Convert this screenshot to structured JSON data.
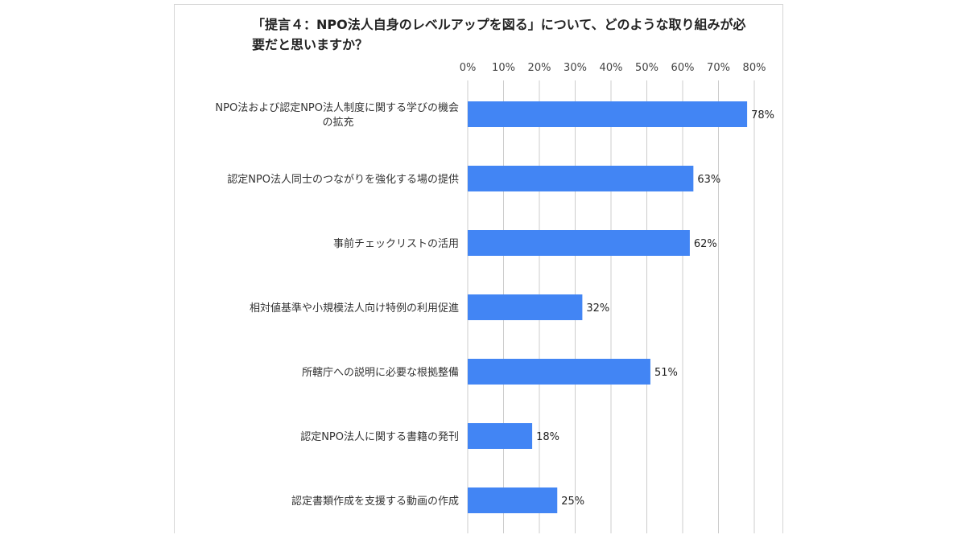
{
  "chart_data": {
    "type": "bar",
    "orientation": "horizontal",
    "title": "「提言４：NPO法人自身のレベルアップを図る」について、どのような取り組みが必要だと思いますか？",
    "categories": [
      [
        "NPO法および認定NPO法人制度に関する学びの機会",
        "の拡充"
      ],
      [
        "認定NPO法人同士のつながりを強化する場の提供"
      ],
      [
        "事前チェックリストの活用"
      ],
      [
        "相対値基準や小規模法人向け特例の利用促進"
      ],
      [
        "所轄庁への説明に必要な根拠整備"
      ],
      [
        "認定NPO法人に関する書籍の発刊"
      ],
      [
        "認定書類作成を支援する動画の作成"
      ]
    ],
    "values": [
      78,
      63,
      62,
      32,
      51,
      18,
      25
    ],
    "data_labels": [
      "78%",
      "63%",
      "62%",
      "32%",
      "51%",
      "18%",
      "25%"
    ],
    "xlim": [
      0,
      80
    ],
    "ticks": [
      "0%",
      "10%",
      "20%",
      "30%",
      "40%",
      "50%",
      "60%",
      "70%",
      "80%"
    ],
    "axis_position": "top",
    "grid": true,
    "bar_color": "#4285f4",
    "grid_color": "#cccccc"
  }
}
